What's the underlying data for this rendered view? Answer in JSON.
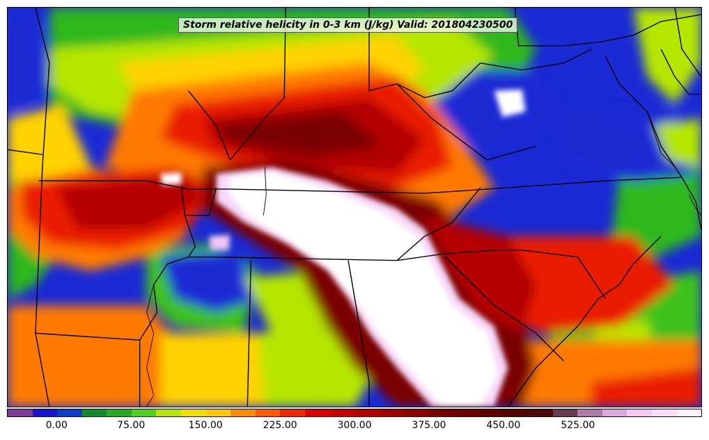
{
  "map": {
    "title": "Storm relative helicity in 0-3 km (J/kg) Valid: 201804230500",
    "region": "southeastern-united-states",
    "field": "storm-relative-helicity-0-3km",
    "colors": {
      "deep_blue": "#1a2ad4",
      "purple": "#7a3fa0",
      "green_dark": "#159a2a",
      "green": "#3cc21a",
      "lime": "#b6e600",
      "yellow": "#ffd200",
      "orange": "#ff7a00",
      "red": "#ea1c00",
      "dark_red": "#b40000",
      "maroon": "#7a0000",
      "brown": "#5c0000",
      "pink": "#f4c6f4",
      "white": "#ffffff",
      "boundary": "#000000"
    }
  },
  "colorbar": {
    "colors": [
      "#7b3a98",
      "#1414d2",
      "#0a3dc8",
      "#0e8c2a",
      "#23ad1e",
      "#4cd21a",
      "#b4e400",
      "#f0e000",
      "#ffc800",
      "#ff8c00",
      "#ff5a00",
      "#f02800",
      "#dc0000",
      "#c80000",
      "#b40000",
      "#a00000",
      "#8c0000",
      "#7a0000",
      "#6e0000",
      "#620000",
      "#560000",
      "#4e0a0a",
      "#6e3a52",
      "#b07aa8",
      "#e0a8e0",
      "#f4c8f4",
      "#fadcfa",
      "#fff0ff"
    ],
    "ticks": [
      {
        "label": "0.00",
        "value": 0
      },
      {
        "label": "75.00",
        "value": 75
      },
      {
        "label": "150.00",
        "value": 150
      },
      {
        "label": "225.00",
        "value": 225
      },
      {
        "label": "300.00",
        "value": 300
      },
      {
        "label": "375.00",
        "value": 375
      },
      {
        "label": "450.00",
        "value": 450
      },
      {
        "label": "525.00",
        "value": 525
      }
    ],
    "range": [
      -50,
      650
    ]
  }
}
